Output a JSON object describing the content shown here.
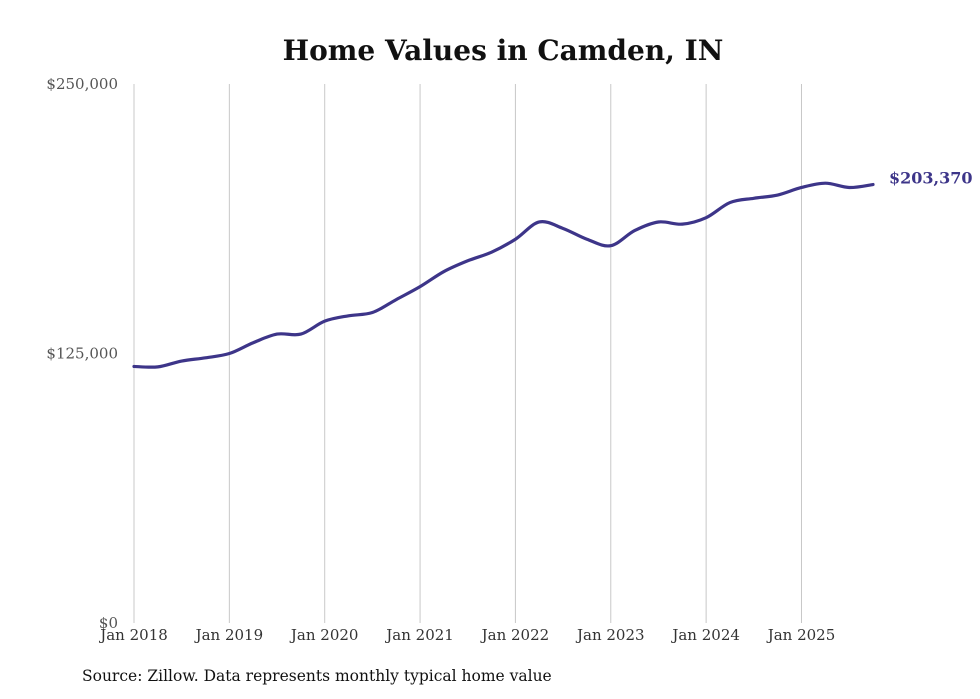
{
  "chart_data": {
    "type": "line",
    "title": "Home Values in Camden, IN",
    "xlabel": "",
    "ylabel": "",
    "ylim": [
      0,
      250000
    ],
    "xlim": [
      2018.0,
      2025.75
    ],
    "y_ticks": [
      {
        "value": 0,
        "label": "$0"
      },
      {
        "value": 125000,
        "label": "$125,000"
      },
      {
        "value": 250000,
        "label": "$250,000"
      }
    ],
    "x_ticks": [
      {
        "value": 2018,
        "label": "Jan 2018"
      },
      {
        "value": 2019,
        "label": "Jan 2019"
      },
      {
        "value": 2020,
        "label": "Jan 2020"
      },
      {
        "value": 2021,
        "label": "Jan 2021"
      },
      {
        "value": 2022,
        "label": "Jan 2022"
      },
      {
        "value": 2023,
        "label": "Jan 2023"
      },
      {
        "value": 2024,
        "label": "Jan 2024"
      },
      {
        "value": 2025,
        "label": "Jan 2025"
      }
    ],
    "grid": "vertical",
    "series": [
      {
        "name": "Typical home value",
        "color": "#3d3589",
        "end_label": "$203,370",
        "x": [
          2018.0,
          2018.25,
          2018.5,
          2018.75,
          2019.0,
          2019.25,
          2019.5,
          2019.75,
          2020.0,
          2020.25,
          2020.5,
          2020.75,
          2021.0,
          2021.25,
          2021.5,
          2021.75,
          2022.0,
          2022.25,
          2022.5,
          2022.75,
          2023.0,
          2023.25,
          2023.5,
          2023.75,
          2024.0,
          2024.25,
          2024.5,
          2024.75,
          2025.0,
          2025.25,
          2025.5,
          2025.75
        ],
        "values": [
          119000,
          118800,
          121500,
          123000,
          125000,
          130000,
          134000,
          134000,
          140000,
          142500,
          144000,
          150000,
          156000,
          163000,
          168000,
          172000,
          178000,
          186000,
          183000,
          178000,
          175000,
          182000,
          186000,
          185000,
          188000,
          195000,
          197000,
          198500,
          202000,
          204000,
          202000,
          203370
        ]
      }
    ]
  },
  "source_note": "Source: Zillow. Data represents monthly typical home value"
}
